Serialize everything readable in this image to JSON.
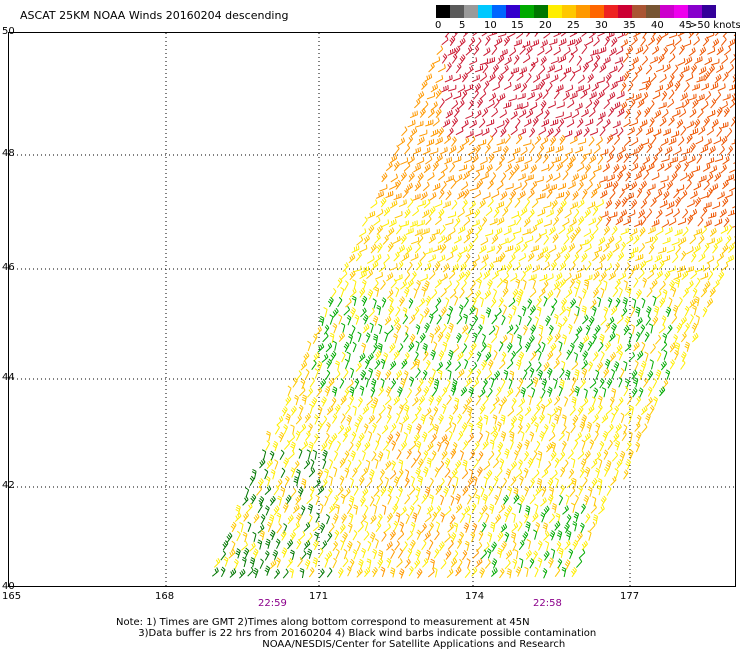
{
  "title": "ASCAT 25KM NOAA Winds 20160204 descending",
  "colorbar": {
    "colors": [
      "#000000",
      "#5a5a5a",
      "#9a9a9a",
      "#00c8ff",
      "#0066ff",
      "#3300cc",
      "#00aa00",
      "#007700",
      "#ffee00",
      "#ffc800",
      "#ff9900",
      "#ff6600",
      "#ee2222",
      "#cc0033",
      "#aa5533",
      "#775533",
      "#cc00cc",
      "#ee00ee",
      "#8800cc",
      "#330099"
    ],
    "labels": [
      "0",
      "5",
      "10",
      "15",
      "20",
      "25",
      "30",
      "35",
      "40",
      "45",
      ">50 knots"
    ]
  },
  "map": {
    "lat_labels": [
      "50",
      "48",
      "46",
      "44",
      "42",
      "40"
    ],
    "lon_labels": [
      "165",
      "168",
      "171",
      "174",
      "177"
    ],
    "time_labels": [
      "22:59",
      "22:58"
    ],
    "barb_colors": {
      "light": "#ffee00",
      "moderate": "#ffc800",
      "fresh": "#ff9900",
      "strong": "#ee5500",
      "gale": "#cc1a33",
      "weak": "#00aa00",
      "weak_dark": "#007700",
      "very_weak": "#0044ff"
    }
  },
  "notes": {
    "line1": "Note: 1) Times are GMT 2)Times along bottom correspond to measurement at 45N",
    "line2": "       3)Data buffer is 22 hrs from 20160204 4) Black wind barbs indicate possible contamination",
    "line3": "                                              NOAA/NESDIS/Center for Satellite Applications and Research"
  }
}
